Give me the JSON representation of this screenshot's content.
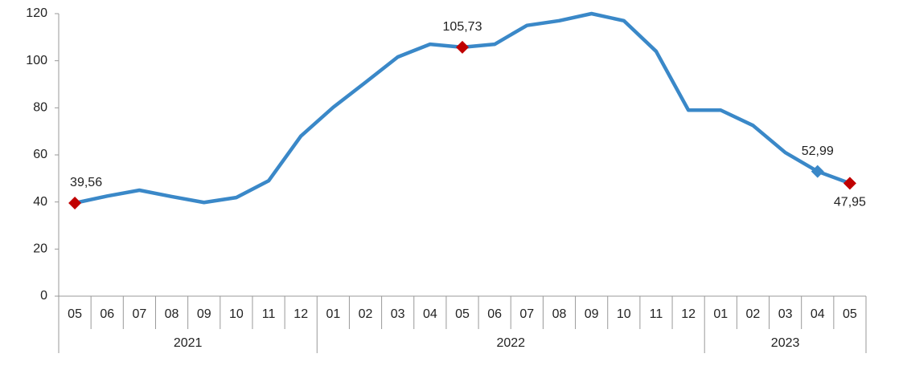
{
  "chart_data": {
    "type": "line",
    "groups": [
      {
        "name": "2021",
        "categories": [
          "05",
          "06",
          "07",
          "08",
          "09",
          "10",
          "11",
          "12"
        ]
      },
      {
        "name": "2022",
        "categories": [
          "01",
          "02",
          "03",
          "04",
          "05",
          "06",
          "07",
          "08",
          "09",
          "10",
          "11",
          "12"
        ]
      },
      {
        "name": "2023",
        "categories": [
          "01",
          "02",
          "03",
          "04",
          "05"
        ]
      }
    ],
    "values": [
      39.56,
      42.5,
      45,
      42.3,
      39.8,
      41.9,
      49,
      68,
      80.2,
      90.8,
      101.6,
      107,
      105.73,
      107,
      115,
      117,
      120,
      117,
      104,
      79,
      79,
      72.5,
      61,
      52.99,
      47.95
    ],
    "value_labels": [
      "39,56",
      null,
      null,
      null,
      null,
      null,
      null,
      null,
      null,
      null,
      null,
      null,
      "105,73",
      null,
      null,
      null,
      null,
      null,
      null,
      null,
      null,
      null,
      null,
      "52,99",
      "47,95"
    ],
    "marker_colors": [
      "#c00000",
      null,
      null,
      null,
      null,
      null,
      null,
      null,
      null,
      null,
      null,
      null,
      "#c00000",
      null,
      null,
      null,
      null,
      null,
      null,
      null,
      null,
      null,
      null,
      "#3a88c8",
      "#c00000"
    ],
    "color": "#3a88c8",
    "ylim": [
      0,
      120
    ],
    "yticks": [
      0,
      20,
      40,
      60,
      80,
      100,
      120
    ],
    "grid": false
  }
}
